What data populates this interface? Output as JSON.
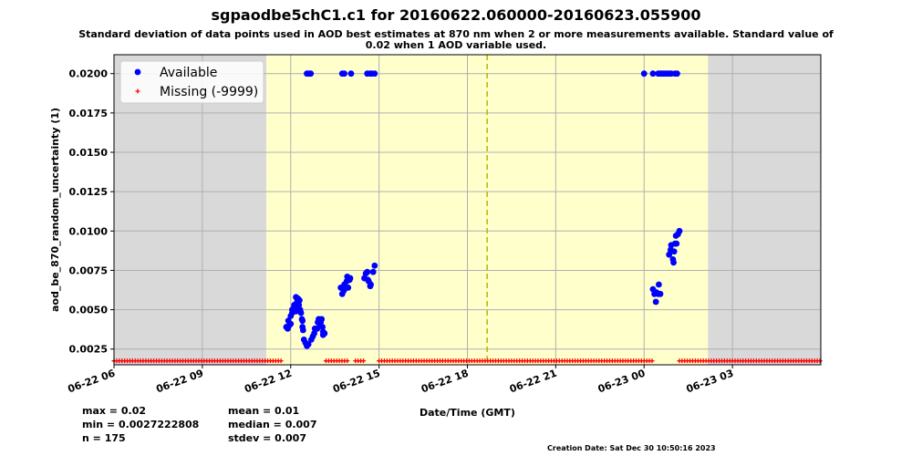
{
  "chart_data": {
    "type": "scatter",
    "title": "sgpaodbe5chC1.c1 for 20160622.060000-20160623.055900",
    "subtitle_lines": [
      "Standard deviation of data points used in AOD best estimates at 870 nm when 2 or more measurements available. Standard value of",
      "0.02 when 1 AOD variable used."
    ],
    "xlabel": "Date/Time (GMT)",
    "ylabel": "aod_be_870_random_uncertainty (1)",
    "x_tick_labels": [
      "06-22 06",
      "06-22 09",
      "06-22 12",
      "06-22 15",
      "06-22 18",
      "06-22 21",
      "06-23 00",
      "06-23 03"
    ],
    "x_tick_hours": [
      0,
      3,
      6,
      9,
      12,
      15,
      18,
      21
    ],
    "xlim_hours": [
      0,
      24
    ],
    "ylim": [
      0.0015,
      0.0212
    ],
    "y_ticks": [
      0.0025,
      0.005,
      0.0075,
      0.01,
      0.0125,
      0.015,
      0.0175,
      0.02
    ],
    "y_tick_labels": [
      "0.0025",
      "0.0050",
      "0.0075",
      "0.0100",
      "0.0125",
      "0.0150",
      "0.0175",
      "0.0200"
    ],
    "grid": true,
    "legend_position": "top-left",
    "legend": [
      {
        "label": "Available",
        "marker": "circle",
        "color": "#0000ff"
      },
      {
        "label": "Missing (-9999)",
        "marker": "plus",
        "color": "#ff0000"
      }
    ],
    "daylight_span_hours": [
      5.17,
      20.17
    ],
    "vertical_marker_hour": 12.67,
    "series": [
      {
        "name": "Available",
        "color": "#0000ff",
        "points": [
          [
            5.85,
            0.0039
          ],
          [
            5.9,
            0.0038
          ],
          [
            5.95,
            0.004
          ],
          [
            6.0,
            0.0041
          ],
          [
            5.92,
            0.0043
          ],
          [
            6.0,
            0.0046
          ],
          [
            6.05,
            0.0048
          ],
          [
            6.05,
            0.005
          ],
          [
            6.1,
            0.0051
          ],
          [
            6.12,
            0.0053
          ],
          [
            6.18,
            0.0049
          ],
          [
            6.2,
            0.0052
          ],
          [
            6.22,
            0.0055
          ],
          [
            6.25,
            0.0057
          ],
          [
            6.18,
            0.0058
          ],
          [
            6.3,
            0.0056
          ],
          [
            6.28,
            0.0053
          ],
          [
            6.32,
            0.005
          ],
          [
            6.35,
            0.0048
          ],
          [
            6.38,
            0.0044
          ],
          [
            6.4,
            0.0043
          ],
          [
            6.4,
            0.0039
          ],
          [
            6.42,
            0.0037
          ],
          [
            6.45,
            0.0031
          ],
          [
            6.5,
            0.0029
          ],
          [
            6.55,
            0.0027
          ],
          [
            6.6,
            0.0028
          ],
          [
            6.7,
            0.0031
          ],
          [
            6.75,
            0.0033
          ],
          [
            6.8,
            0.0035
          ],
          [
            6.82,
            0.0038
          ],
          [
            6.9,
            0.0038
          ],
          [
            6.92,
            0.0042
          ],
          [
            6.95,
            0.0044
          ],
          [
            7.0,
            0.004
          ],
          [
            7.02,
            0.0042
          ],
          [
            7.05,
            0.0044
          ],
          [
            7.08,
            0.0039
          ],
          [
            7.1,
            0.0036
          ],
          [
            7.1,
            0.0034
          ],
          [
            7.15,
            0.0035
          ],
          [
            6.55,
            0.02
          ],
          [
            6.62,
            0.02
          ],
          [
            6.68,
            0.02
          ],
          [
            7.7,
            0.0064
          ],
          [
            7.75,
            0.006
          ],
          [
            7.8,
            0.0062
          ],
          [
            7.82,
            0.0066
          ],
          [
            7.88,
            0.0064
          ],
          [
            7.9,
            0.0068
          ],
          [
            7.92,
            0.0071
          ],
          [
            7.95,
            0.0064
          ],
          [
            8.0,
            0.0069
          ],
          [
            8.02,
            0.007
          ],
          [
            8.5,
            0.007
          ],
          [
            8.55,
            0.0073
          ],
          [
            8.6,
            0.0074
          ],
          [
            8.62,
            0.0069
          ],
          [
            8.65,
            0.0068
          ],
          [
            8.7,
            0.0065
          ],
          [
            8.72,
            0.0066
          ],
          [
            8.8,
            0.0074
          ],
          [
            8.85,
            0.0078
          ],
          [
            7.75,
            0.02
          ],
          [
            7.82,
            0.02
          ],
          [
            8.05,
            0.02
          ],
          [
            8.6,
            0.02
          ],
          [
            8.7,
            0.02
          ],
          [
            8.75,
            0.02
          ],
          [
            8.85,
            0.02
          ],
          [
            18.0,
            0.02
          ],
          [
            18.3,
            0.02
          ],
          [
            18.48,
            0.02
          ],
          [
            18.55,
            0.02
          ],
          [
            18.6,
            0.02
          ],
          [
            18.65,
            0.02
          ],
          [
            18.72,
            0.02
          ],
          [
            18.78,
            0.02
          ],
          [
            18.85,
            0.02
          ],
          [
            18.92,
            0.02
          ],
          [
            19.05,
            0.02
          ],
          [
            19.12,
            0.02
          ],
          [
            18.3,
            0.0063
          ],
          [
            18.35,
            0.006
          ],
          [
            18.42,
            0.0061
          ],
          [
            18.48,
            0.006
          ],
          [
            18.55,
            0.006
          ],
          [
            18.4,
            0.0055
          ],
          [
            18.5,
            0.0066
          ],
          [
            18.85,
            0.0085
          ],
          [
            18.9,
            0.0088
          ],
          [
            18.92,
            0.0091
          ],
          [
            18.98,
            0.0082
          ],
          [
            19.0,
            0.008
          ],
          [
            19.02,
            0.0087
          ],
          [
            19.05,
            0.0092
          ],
          [
            19.1,
            0.0092
          ],
          [
            19.08,
            0.0097
          ],
          [
            19.15,
            0.0098
          ],
          [
            19.2,
            0.01
          ]
        ]
      },
      {
        "name": "Missing (-9999)",
        "color": "#ff0000",
        "y_plot_value": 0.00175,
        "segments_hours": [
          [
            0.0,
            5.75
          ],
          [
            7.2,
            7.95
          ],
          [
            8.2,
            8.5
          ],
          [
            9.0,
            18.35
          ],
          [
            19.2,
            24.0
          ]
        ]
      }
    ],
    "stats": {
      "max": "max = 0.02",
      "min": "min = 0.0027222808",
      "n": "n = 175",
      "mean": "mean = 0.01",
      "median": "median = 0.007",
      "stdev": "stdev = 0.007"
    },
    "creation_date": "Creation Date: Sat Dec 30 10:50:16 2023"
  }
}
